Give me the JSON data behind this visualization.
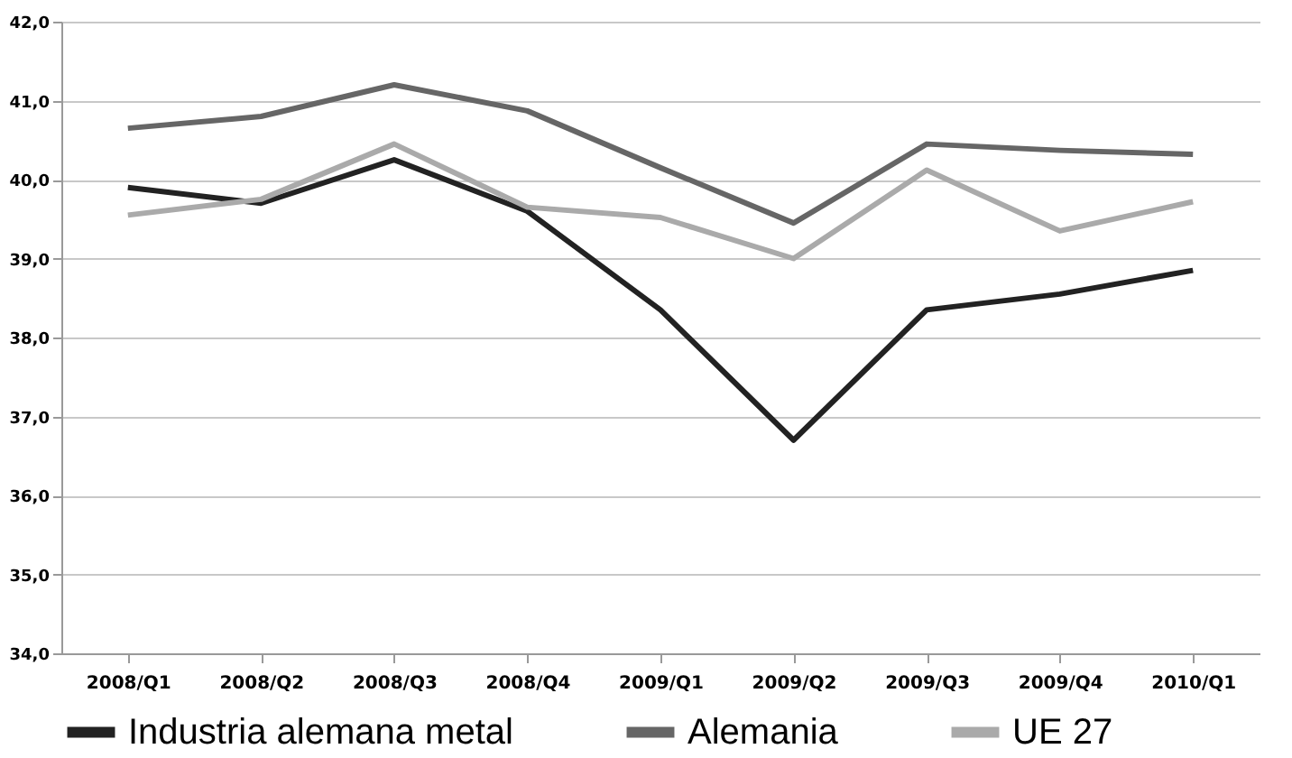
{
  "chart_data": {
    "type": "line",
    "categories": [
      "2008/Q1",
      "2008/Q2",
      "2008/Q3",
      "2008/Q4",
      "2009/Q1",
      "2009/Q2",
      "2009/Q3",
      "2009/Q4",
      "2010/Q1"
    ],
    "series": [
      {
        "name": "Industria alemana metal",
        "color": "#222222",
        "values": [
          39.9,
          39.7,
          40.25,
          39.6,
          38.35,
          36.7,
          38.35,
          38.55,
          38.85
        ]
      },
      {
        "name": "Alemania",
        "color": "#666666",
        "values": [
          40.65,
          40.8,
          41.2,
          40.87,
          40.15,
          39.45,
          40.45,
          40.37,
          40.32
        ]
      },
      {
        "name": "UE 27",
        "color": "#aaaaaa",
        "values": [
          39.55,
          39.75,
          40.45,
          39.65,
          39.52,
          39.0,
          40.12,
          39.35,
          39.72
        ]
      }
    ],
    "ylim": [
      34,
      42
    ],
    "yticks": [
      {
        "value": 34,
        "label": "34,0"
      },
      {
        "value": 35,
        "label": "35,0"
      },
      {
        "value": 36,
        "label": "36,0"
      },
      {
        "value": 37,
        "label": "37,0"
      },
      {
        "value": 38,
        "label": "38,0"
      },
      {
        "value": 39,
        "label": "39,0"
      },
      {
        "value": 40,
        "label": "40,0"
      },
      {
        "value": 41,
        "label": "41,0"
      },
      {
        "value": 42,
        "label": "42,0"
      }
    ],
    "grid": "y",
    "legend": "bottom",
    "marker": "none",
    "line_style": "solid"
  }
}
